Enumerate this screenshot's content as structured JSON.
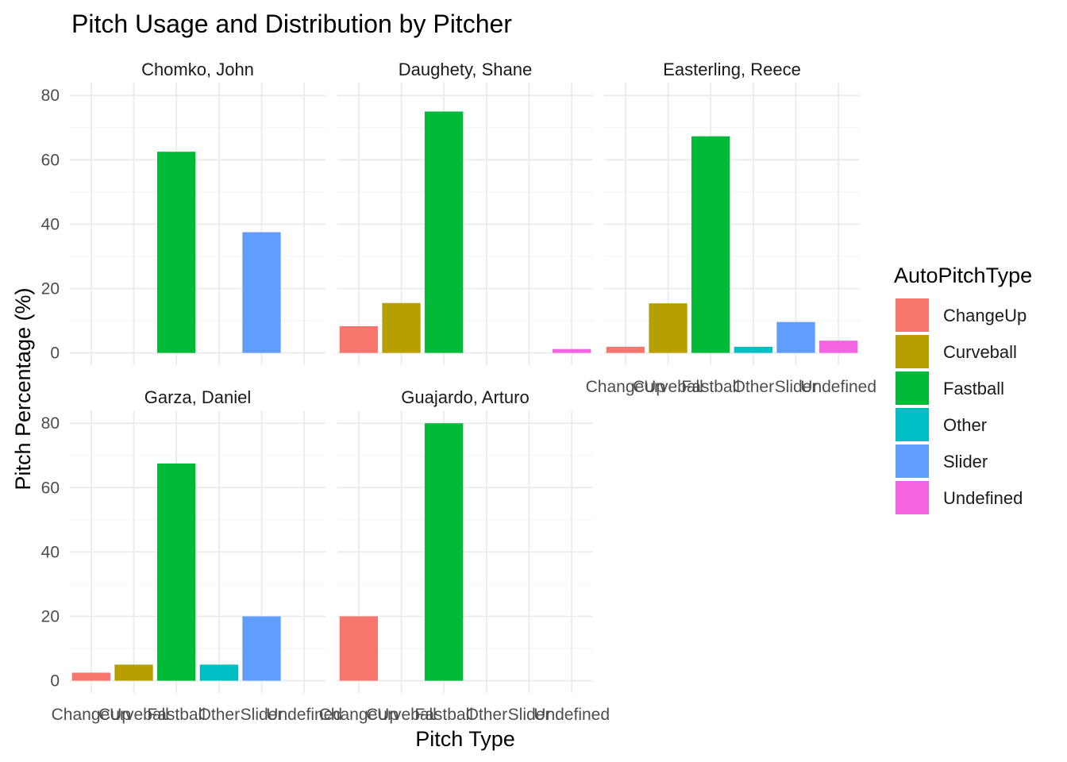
{
  "chart_data": {
    "type": "bar",
    "title": "Pitch Usage and Distribution by Pitcher",
    "xlabel": "Pitch Type",
    "ylabel": "Pitch Percentage (%)",
    "ylim": [
      -3.8,
      84
    ],
    "yticks": [
      0,
      20,
      40,
      60,
      80
    ],
    "grid": true,
    "categories": [
      "ChangeUp",
      "Curveball",
      "Fastball",
      "Other",
      "Slider",
      "Undefined"
    ],
    "legend": {
      "title": "AutoPitchType",
      "placement": "right",
      "entries": [
        "ChangeUp",
        "Curveball",
        "Fastball",
        "Other",
        "Slider",
        "Undefined"
      ]
    },
    "colors": {
      "ChangeUp": "#F8766D",
      "Curveball": "#B79F00",
      "Fastball": "#00BA38",
      "Other": "#00BFC4",
      "Slider": "#619CFF",
      "Undefined": "#F564E3"
    },
    "panels": [
      {
        "pitcher": "Chomko, John",
        "values": [
          0,
          0,
          62.5,
          0,
          37.5,
          0
        ]
      },
      {
        "pitcher": "Daughety, Shane",
        "values": [
          8.3,
          15.5,
          75,
          0,
          0,
          1.2
        ]
      },
      {
        "pitcher": "Easterling, Reece",
        "values": [
          1.9,
          15.4,
          67.3,
          1.9,
          9.6,
          3.8
        ]
      },
      {
        "pitcher": "Garza, Daniel",
        "values": [
          2.5,
          5,
          67.5,
          5,
          20,
          0
        ]
      },
      {
        "pitcher": "Guajardo, Arturo",
        "values": [
          20,
          0,
          80,
          0,
          0,
          0
        ]
      }
    ]
  }
}
